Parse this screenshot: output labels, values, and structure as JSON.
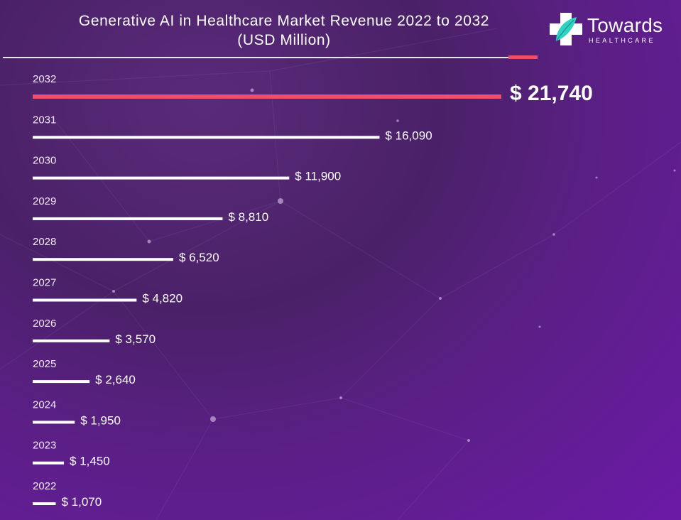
{
  "header": {
    "title_line1": "Generative AI in Healthcare Market Revenue 2022 to 2032",
    "title_line2": "(USD Million)"
  },
  "logo": {
    "name": "Towards",
    "subtitle": "HEALTHCARE",
    "icon": "medical-cross-icon"
  },
  "colors": {
    "accent": "#ef4d6e",
    "bar": "#ffffff",
    "cross_teal": "#2fd3c0"
  },
  "chart_data": {
    "type": "bar",
    "orientation": "horizontal",
    "title": "Generative AI in Healthcare Market Revenue 2022 to 2032 (USD Million)",
    "xlabel": "",
    "ylabel": "",
    "currency_prefix": "$",
    "highlight": "2032",
    "categories": [
      "2032",
      "2031",
      "2030",
      "2029",
      "2028",
      "2027",
      "2026",
      "2025",
      "2024",
      "2023",
      "2022"
    ],
    "values": [
      21740,
      16090,
      11900,
      8810,
      6520,
      4820,
      3570,
      2640,
      1950,
      1450,
      1070
    ],
    "value_labels": [
      "$ 21,740",
      "$ 16,090",
      "$ 11,900",
      "$ 8,810",
      "$ 6,520",
      "$ 4,820",
      "$ 3,570",
      "$ 2,640",
      "$ 1,950",
      "$ 1,450",
      "$ 1,070"
    ]
  }
}
